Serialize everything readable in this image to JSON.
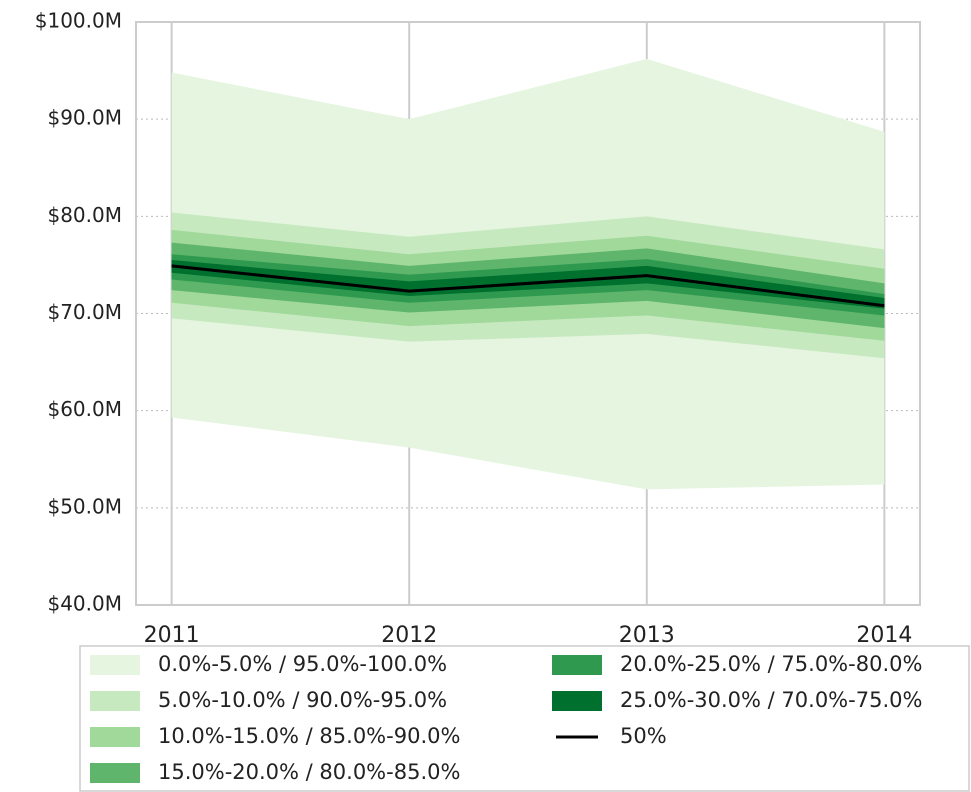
{
  "chart_data": {
    "type": "fan",
    "x": [
      2011,
      2012,
      2013,
      2014
    ],
    "xlim": [
      2010.85,
      2014.15
    ],
    "xticks": [
      2011,
      2012,
      2013,
      2014
    ],
    "ylim": [
      40,
      100
    ],
    "yticks": [
      {
        "value": 40,
        "label": "$40.0M"
      },
      {
        "value": 50,
        "label": "$50.0M"
      },
      {
        "value": 60,
        "label": "$60.0M"
      },
      {
        "value": 70,
        "label": "$70.0M"
      },
      {
        "value": 80,
        "label": "$80.0M"
      },
      {
        "value": 90,
        "label": "$90.0M"
      },
      {
        "value": 100,
        "label": "$100.0M"
      }
    ],
    "grid": true,
    "series": [
      {
        "name": "0.0%-5.0% / 95.0%-100.0%",
        "color": "#e5f5e0",
        "lower": [
          59.3,
          56.2,
          51.9,
          52.4
        ],
        "upper": [
          94.8,
          90.0,
          96.2,
          88.7
        ]
      },
      {
        "name": "5.0%-10.0% / 90.0%-95.0%",
        "color": "#c7e9c0",
        "lower": [
          69.5,
          67.1,
          67.9,
          65.4
        ],
        "upper": [
          80.4,
          77.9,
          80.0,
          76.6
        ]
      },
      {
        "name": "10.0%-15.0% / 85.0%-90.0%",
        "color": "#a1d99b",
        "lower": [
          71.1,
          68.7,
          69.8,
          67.2
        ],
        "upper": [
          78.6,
          76.1,
          78.0,
          74.6
        ]
      },
      {
        "name": "15.0%-20.0% / 80.0%-85.0%",
        "color": "#5fb56c",
        "lower": [
          72.4,
          70.1,
          71.3,
          68.5
        ],
        "upper": [
          77.3,
          74.9,
          76.7,
          73.1
        ]
      },
      {
        "name": "20.0%-25.0% / 75.0%-80.0%",
        "color": "#2f9a4f",
        "lower": [
          73.5,
          71.1,
          72.4,
          69.8
        ],
        "upper": [
          76.1,
          74.0,
          75.6,
          72.0
        ]
      },
      {
        "name": "25.0%-30.0% / 70.0%-75.0%",
        "color": "#00702f",
        "lower": [
          74.2,
          71.8,
          73.1,
          70.5
        ],
        "upper": [
          75.5,
          73.3,
          74.9,
          71.6
        ]
      }
    ],
    "median": {
      "name": "50%",
      "color": "#000000",
      "values": [
        74.9,
        72.3,
        73.9,
        70.8
      ]
    }
  }
}
